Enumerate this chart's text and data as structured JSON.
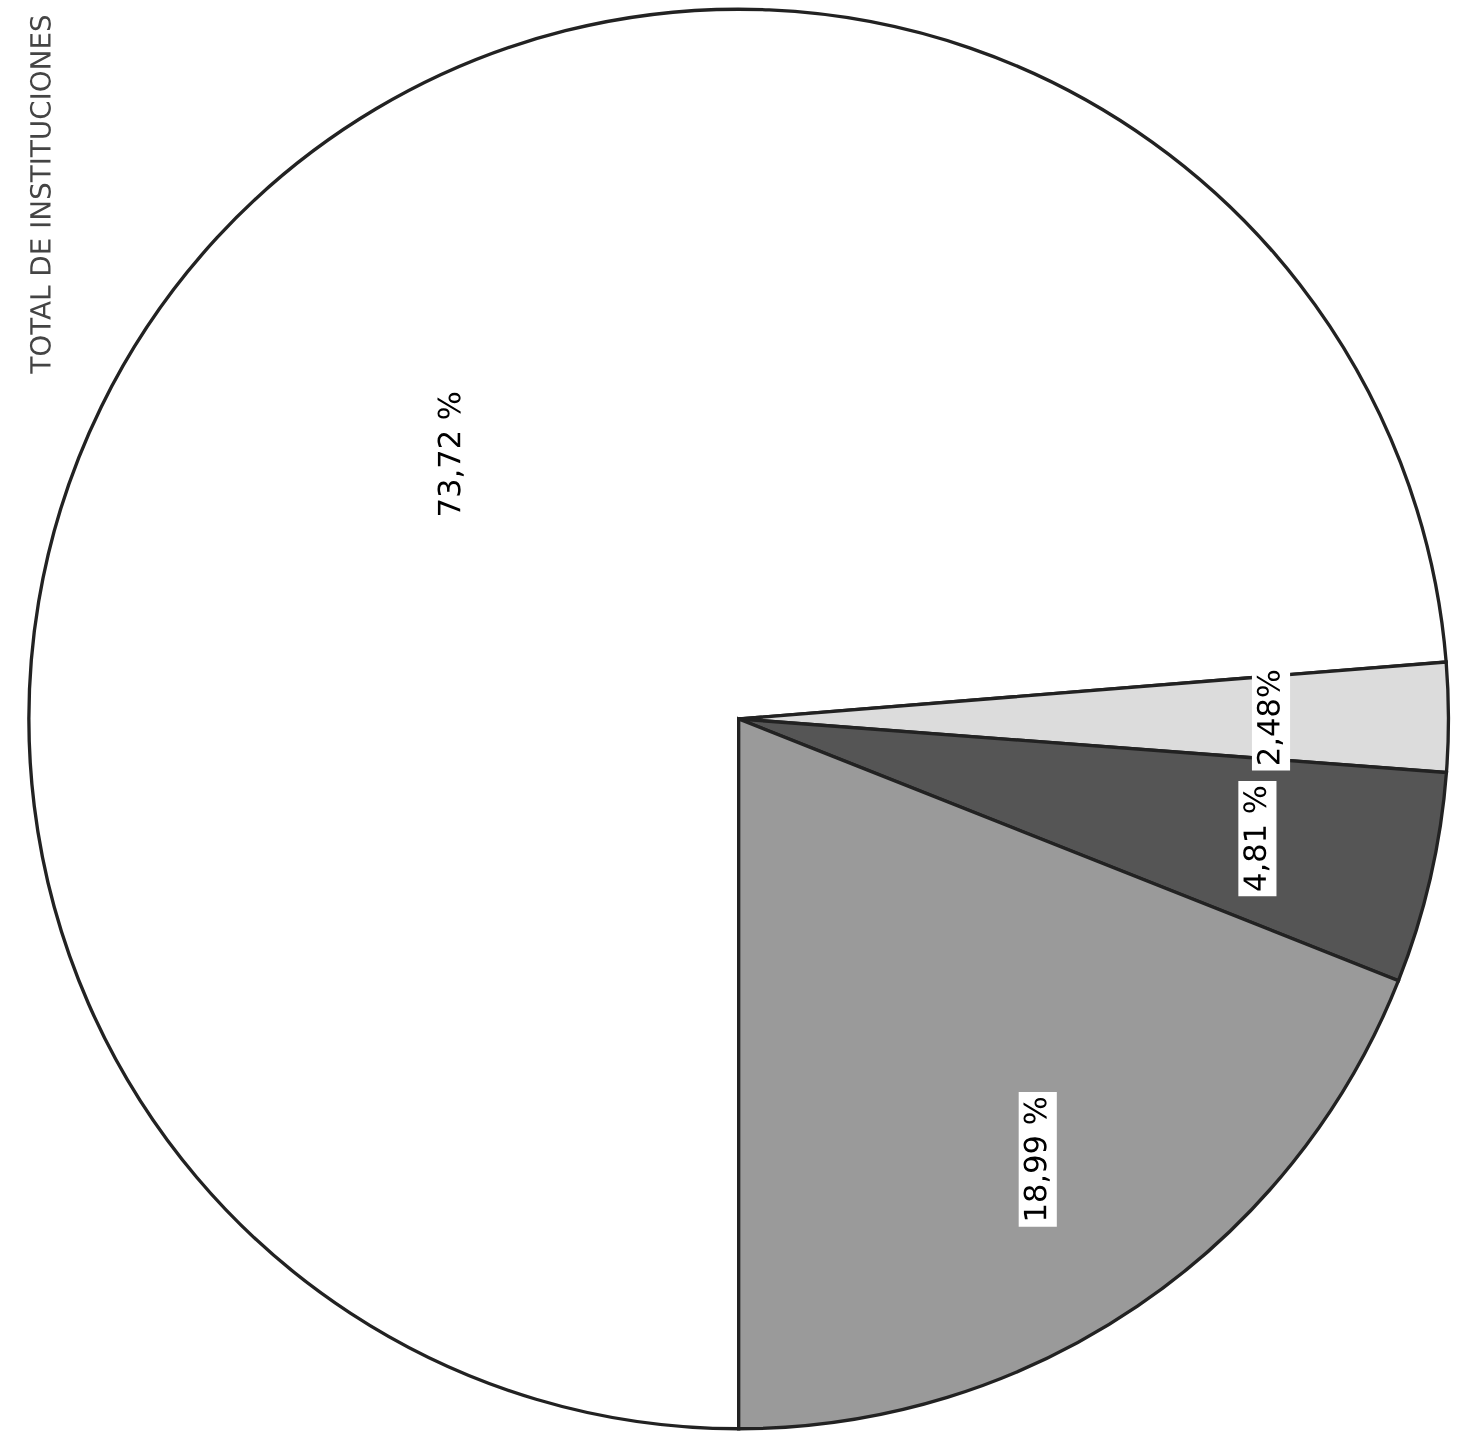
{
  "chart_data": {
    "type": "pie",
    "title": "TOTAL DE INSTITUCIONES",
    "categories": [
      null,
      null,
      null,
      null
    ],
    "values": [
      73.72,
      2.48,
      4.81,
      18.99
    ],
    "value_labels": [
      "73,72 %",
      "2,48%",
      "4,81 %",
      "18,99 %"
    ],
    "colors": [
      "#ffffff",
      "#dcdcdc",
      "#555555",
      "#9a9a9a"
    ]
  }
}
